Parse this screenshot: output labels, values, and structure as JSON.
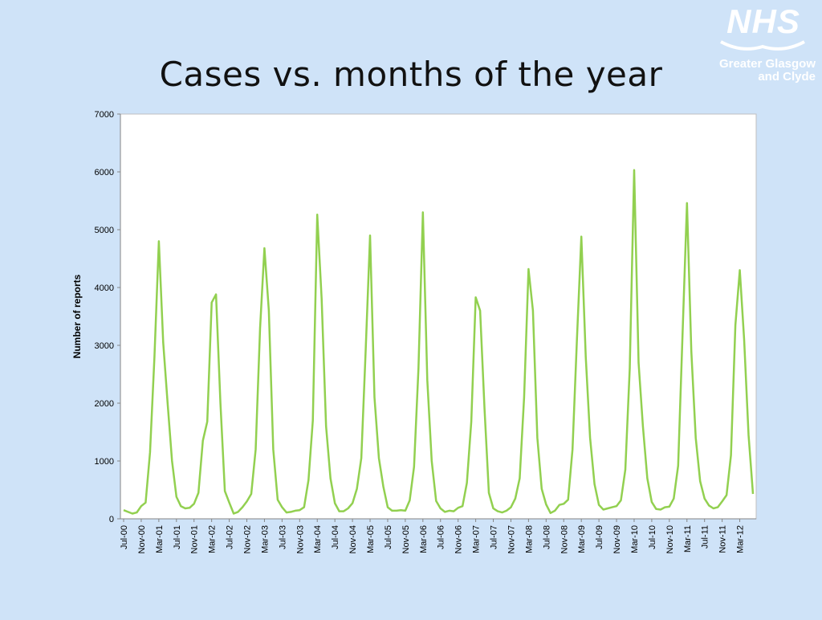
{
  "slide": {
    "title": "Cases vs. months of the year"
  },
  "logo": {
    "brand": "NHS",
    "line1": "Greater Glasgow",
    "line2": "and Clyde",
    "color": "#ffffff"
  },
  "chart_data": {
    "type": "line",
    "title": "",
    "xlabel": "",
    "ylabel": "Number of reports",
    "ylim": [
      0,
      7000
    ],
    "yticks": [
      0,
      1000,
      2000,
      3000,
      4000,
      5000,
      6000,
      7000
    ],
    "grid": false,
    "line_color": "#92d050",
    "x_tick_labels": [
      "Jul-00",
      "Nov-00",
      "Mar-01",
      "Jul-01",
      "Nov-01",
      "Mar-02",
      "Jul-02",
      "Nov-02",
      "Mar-03",
      "Jul-03",
      "Nov-03",
      "Mar-04",
      "Jul-04",
      "Nov-04",
      "Mar-05",
      "Jul-05",
      "Nov-05",
      "Mar-06",
      "Jul-06",
      "Nov-06",
      "Mar-07",
      "Jul-07",
      "Nov-07",
      "Mar-08",
      "Jul-08",
      "Nov-08",
      "Mar-09",
      "Jul-09",
      "Nov-09",
      "Mar-10",
      "Jul-10",
      "Nov-10",
      "Mar-11",
      "Jul-11",
      "Nov-11",
      "Mar-12"
    ],
    "series": [
      {
        "values": [
          150,
          120,
          90,
          110,
          220,
          280,
          1150,
          2800,
          4800,
          3050,
          2000,
          1000,
          380,
          220,
          180,
          190,
          260,
          450,
          1350,
          1680,
          3740,
          3880,
          2000,
          480,
          280,
          90,
          120,
          200,
          300,
          430,
          1200,
          3300,
          4680,
          3600,
          1200,
          330,
          200,
          110,
          120,
          140,
          150,
          200,
          670,
          1700,
          5260,
          3800,
          1600,
          700,
          270,
          130,
          130,
          180,
          270,
          520,
          1050,
          2900,
          4900,
          2100,
          1050,
          560,
          200,
          140,
          140,
          150,
          140,
          320,
          900,
          2600,
          5300,
          2400,
          1000,
          310,
          180,
          120,
          140,
          130,
          190,
          220,
          620,
          1680,
          3830,
          3600,
          1900,
          450,
          180,
          130,
          110,
          140,
          200,
          350,
          700,
          2100,
          4320,
          3600,
          1400,
          520,
          250,
          100,
          140,
          240,
          260,
          330,
          1200,
          3100,
          4880,
          2800,
          1400,
          600,
          240,
          160,
          180,
          200,
          220,
          320,
          850,
          2600,
          6030,
          2700,
          1600,
          700,
          290,
          170,
          160,
          200,
          210,
          350,
          920,
          3200,
          5460,
          2900,
          1400,
          650,
          350,
          230,
          180,
          200,
          300,
          410,
          1100,
          3350,
          4300,
          3100,
          1450,
          430
        ]
      }
    ]
  }
}
